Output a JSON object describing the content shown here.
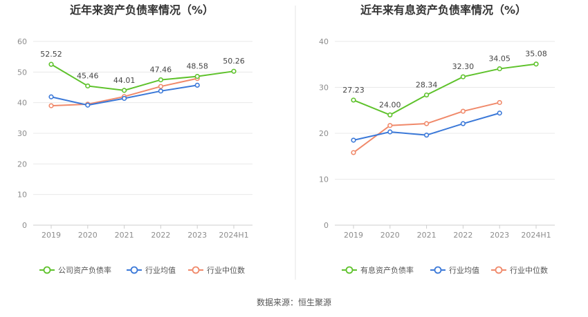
{
  "source": "数据来源：恒生聚源",
  "series_colors": {
    "company": "#5ec22b",
    "industry_avg": "#3a78d8",
    "industry_median": "#f0896a"
  },
  "chart_data": [
    {
      "type": "line",
      "title": "近年来资产负债率情况（%）",
      "categories": [
        "2019",
        "2020",
        "2021",
        "2022",
        "2023",
        "2024H1"
      ],
      "ylim": [
        0,
        60
      ],
      "yticks": [
        "0",
        "10",
        "20",
        "30",
        "40",
        "50",
        "60"
      ],
      "grid": true,
      "legend_position": "bottom",
      "series": [
        {
          "name": "公司资产负债率",
          "values": [
            52.52,
            45.46,
            44.01,
            47.46,
            48.58,
            50.26
          ],
          "labels": [
            "52.52",
            "45.46",
            "44.01",
            "47.46",
            "48.58",
            "50.26"
          ]
        },
        {
          "name": "行业均值",
          "values": [
            41.9,
            39.2,
            41.4,
            43.8,
            45.7,
            null
          ]
        },
        {
          "name": "行业中位数",
          "values": [
            39.0,
            39.5,
            42.0,
            45.3,
            47.9,
            null
          ]
        }
      ]
    },
    {
      "type": "line",
      "title": "近年来有息资产负债率情况（%）",
      "categories": [
        "2019",
        "2020",
        "2021",
        "2022",
        "2023",
        "2024H1"
      ],
      "ylim": [
        0,
        40
      ],
      "yticks": [
        "0",
        "10",
        "20",
        "30",
        "40"
      ],
      "grid": true,
      "legend_position": "bottom",
      "series": [
        {
          "name": "有息资产负债率",
          "values": [
            27.23,
            24.0,
            28.34,
            32.3,
            34.05,
            35.08
          ],
          "labels": [
            "27.23",
            "24.00",
            "28.34",
            "32.30",
            "34.05",
            "35.08"
          ]
        },
        {
          "name": "行业均值",
          "values": [
            18.5,
            20.3,
            19.6,
            22.1,
            24.4,
            null
          ]
        },
        {
          "name": "行业中位数",
          "values": [
            15.8,
            21.7,
            22.1,
            24.8,
            26.7,
            null
          ]
        }
      ]
    }
  ]
}
